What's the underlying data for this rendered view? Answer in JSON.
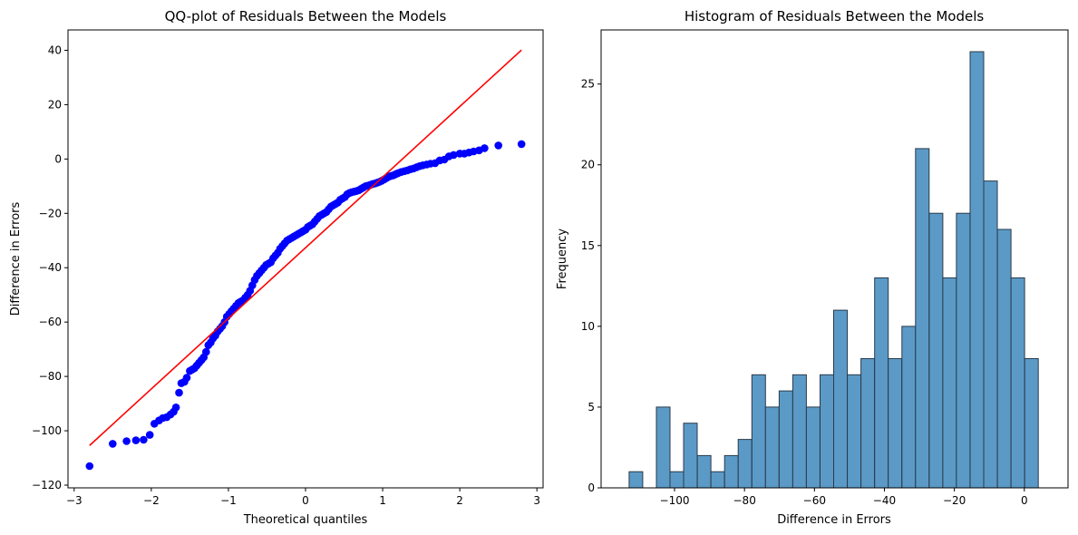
{
  "chart_data": [
    {
      "type": "scatter",
      "title": "QQ-plot of Residuals Between the Models",
      "xlabel": "Theoretical quantiles",
      "ylabel": "Difference in Errors",
      "xlim": [
        -3.08,
        3.08
      ],
      "ylim": [
        -121,
        47.5
      ],
      "xticks": [
        -3,
        -2,
        -1,
        0,
        1,
        2,
        3
      ],
      "yticks": [
        -120,
        -100,
        -80,
        -60,
        -40,
        -20,
        0,
        20,
        40
      ],
      "grid": false,
      "point_color": "#0000ff",
      "line_color": "#ff0000",
      "fit_line": {
        "x": [
          -2.8,
          2.8
        ],
        "y": [
          -105.4,
          40.1
        ]
      },
      "points": [
        [
          -2.8,
          -113
        ],
        [
          -2.5,
          -104.8
        ],
        [
          -2.32,
          -103.8
        ],
        [
          -2.2,
          -103.5
        ],
        [
          -2.1,
          -103.3
        ],
        [
          -2.02,
          -101.5
        ],
        [
          -1.96,
          -97.4
        ],
        [
          -1.9,
          -96.2
        ],
        [
          -1.85,
          -95.3
        ],
        [
          -1.8,
          -95
        ],
        [
          -1.75,
          -94
        ],
        [
          -1.71,
          -93
        ],
        [
          -1.68,
          -91.4
        ],
        [
          -1.64,
          -86
        ],
        [
          -1.61,
          -82.5
        ],
        [
          -1.57,
          -82
        ],
        [
          -1.54,
          -80.5
        ],
        [
          -1.5,
          -78
        ],
        [
          -1.47,
          -77.5
        ],
        [
          -1.44,
          -77
        ],
        [
          -1.41,
          -76
        ],
        [
          -1.38,
          -75
        ],
        [
          -1.35,
          -74
        ],
        [
          -1.32,
          -73
        ],
        [
          -1.29,
          -71
        ],
        [
          -1.26,
          -68.5
        ],
        [
          -1.23,
          -67.5
        ],
        [
          -1.2,
          -66
        ],
        [
          -1.17,
          -65
        ],
        [
          -1.14,
          -63.5
        ],
        [
          -1.11,
          -62.5
        ],
        [
          -1.08,
          -61.5
        ],
        [
          -1.05,
          -60
        ],
        [
          -1.02,
          -58
        ],
        [
          -0.99,
          -57
        ],
        [
          -0.96,
          -56
        ],
        [
          -0.93,
          -55
        ],
        [
          -0.9,
          -54
        ],
        [
          -0.87,
          -53
        ],
        [
          -0.84,
          -52.5
        ],
        [
          -0.81,
          -52
        ],
        [
          -0.78,
          -51
        ],
        [
          -0.75,
          -50
        ],
        [
          -0.72,
          -48.5
        ],
        [
          -0.69,
          -46.5
        ],
        [
          -0.66,
          -44.5
        ],
        [
          -0.63,
          -43
        ],
        [
          -0.6,
          -42
        ],
        [
          -0.57,
          -41
        ],
        [
          -0.54,
          -40
        ],
        [
          -0.51,
          -39
        ],
        [
          -0.48,
          -38.5
        ],
        [
          -0.45,
          -38
        ],
        [
          -0.42,
          -36.5
        ],
        [
          -0.39,
          -35.5
        ],
        [
          -0.36,
          -34.5
        ],
        [
          -0.33,
          -33
        ],
        [
          -0.3,
          -32
        ],
        [
          -0.27,
          -31
        ],
        [
          -0.24,
          -30
        ],
        [
          -0.21,
          -29.5
        ],
        [
          -0.18,
          -29
        ],
        [
          -0.15,
          -28.5
        ],
        [
          -0.12,
          -28
        ],
        [
          -0.09,
          -27.5
        ],
        [
          -0.06,
          -27
        ],
        [
          -0.03,
          -26.5
        ],
        [
          0,
          -26
        ],
        [
          0.03,
          -25
        ],
        [
          0.06,
          -24.5
        ],
        [
          0.09,
          -24
        ],
        [
          0.12,
          -23
        ],
        [
          0.15,
          -22
        ],
        [
          0.18,
          -21
        ],
        [
          0.21,
          -20.5
        ],
        [
          0.24,
          -20
        ],
        [
          0.27,
          -19.5
        ],
        [
          0.3,
          -18.5
        ],
        [
          0.33,
          -17.5
        ],
        [
          0.36,
          -17
        ],
        [
          0.39,
          -16.5
        ],
        [
          0.42,
          -16
        ],
        [
          0.45,
          -15
        ],
        [
          0.48,
          -14.5
        ],
        [
          0.51,
          -14
        ],
        [
          0.54,
          -13
        ],
        [
          0.57,
          -12.5
        ],
        [
          0.6,
          -12.2
        ],
        [
          0.63,
          -12
        ],
        [
          0.66,
          -11.8
        ],
        [
          0.69,
          -11.5
        ],
        [
          0.72,
          -11
        ],
        [
          0.75,
          -10.5
        ],
        [
          0.78,
          -10
        ],
        [
          0.81,
          -9.8
        ],
        [
          0.84,
          -9.5
        ],
        [
          0.87,
          -9.2
        ],
        [
          0.9,
          -9
        ],
        [
          0.93,
          -8.7
        ],
        [
          0.96,
          -8.4
        ],
        [
          0.99,
          -8
        ],
        [
          1.02,
          -7.5
        ],
        [
          1.05,
          -7
        ],
        [
          1.08,
          -6.5
        ],
        [
          1.11,
          -6.2
        ],
        [
          1.14,
          -6
        ],
        [
          1.17,
          -5.6
        ],
        [
          1.2,
          -5.2
        ],
        [
          1.24,
          -4.8
        ],
        [
          1.28,
          -4.5
        ],
        [
          1.32,
          -4.2
        ],
        [
          1.36,
          -3.8
        ],
        [
          1.4,
          -3.5
        ],
        [
          1.44,
          -3
        ],
        [
          1.48,
          -2.6
        ],
        [
          1.52,
          -2.3
        ],
        [
          1.57,
          -2
        ],
        [
          1.62,
          -1.7
        ],
        [
          1.68,
          -1.5
        ],
        [
          1.74,
          -0.5
        ],
        [
          1.8,
          -0.2
        ],
        [
          1.86,
          1
        ],
        [
          1.92,
          1.5
        ],
        [
          2.0,
          2
        ],
        [
          2.06,
          2
        ],
        [
          2.12,
          2.4
        ],
        [
          2.18,
          2.8
        ],
        [
          2.25,
          3.2
        ],
        [
          2.32,
          4
        ],
        [
          2.5,
          5
        ],
        [
          2.8,
          5.5
        ]
      ]
    },
    {
      "type": "bar",
      "title": "Histogram of Residuals Between the Models",
      "xlabel": "Difference in Errors",
      "ylabel": "Frequency",
      "xlim": [
        -121,
        12.5
      ],
      "ylim": [
        0,
        28.35
      ],
      "xticks": [
        -100,
        -80,
        -60,
        -40,
        -20,
        0
      ],
      "yticks": [
        0,
        5,
        10,
        15,
        20,
        25
      ],
      "grid": false,
      "bar_color": "#5b9ac7",
      "edge_color": "#2a3a4a",
      "bin_start": -113,
      "bin_width": 3.9,
      "values": [
        1,
        0,
        5,
        1,
        4,
        2,
        1,
        2,
        3,
        7,
        5,
        6,
        7,
        5,
        7,
        11,
        7,
        8,
        13,
        8,
        10,
        21,
        17,
        13,
        17,
        27,
        19,
        16,
        13,
        8
      ]
    }
  ]
}
